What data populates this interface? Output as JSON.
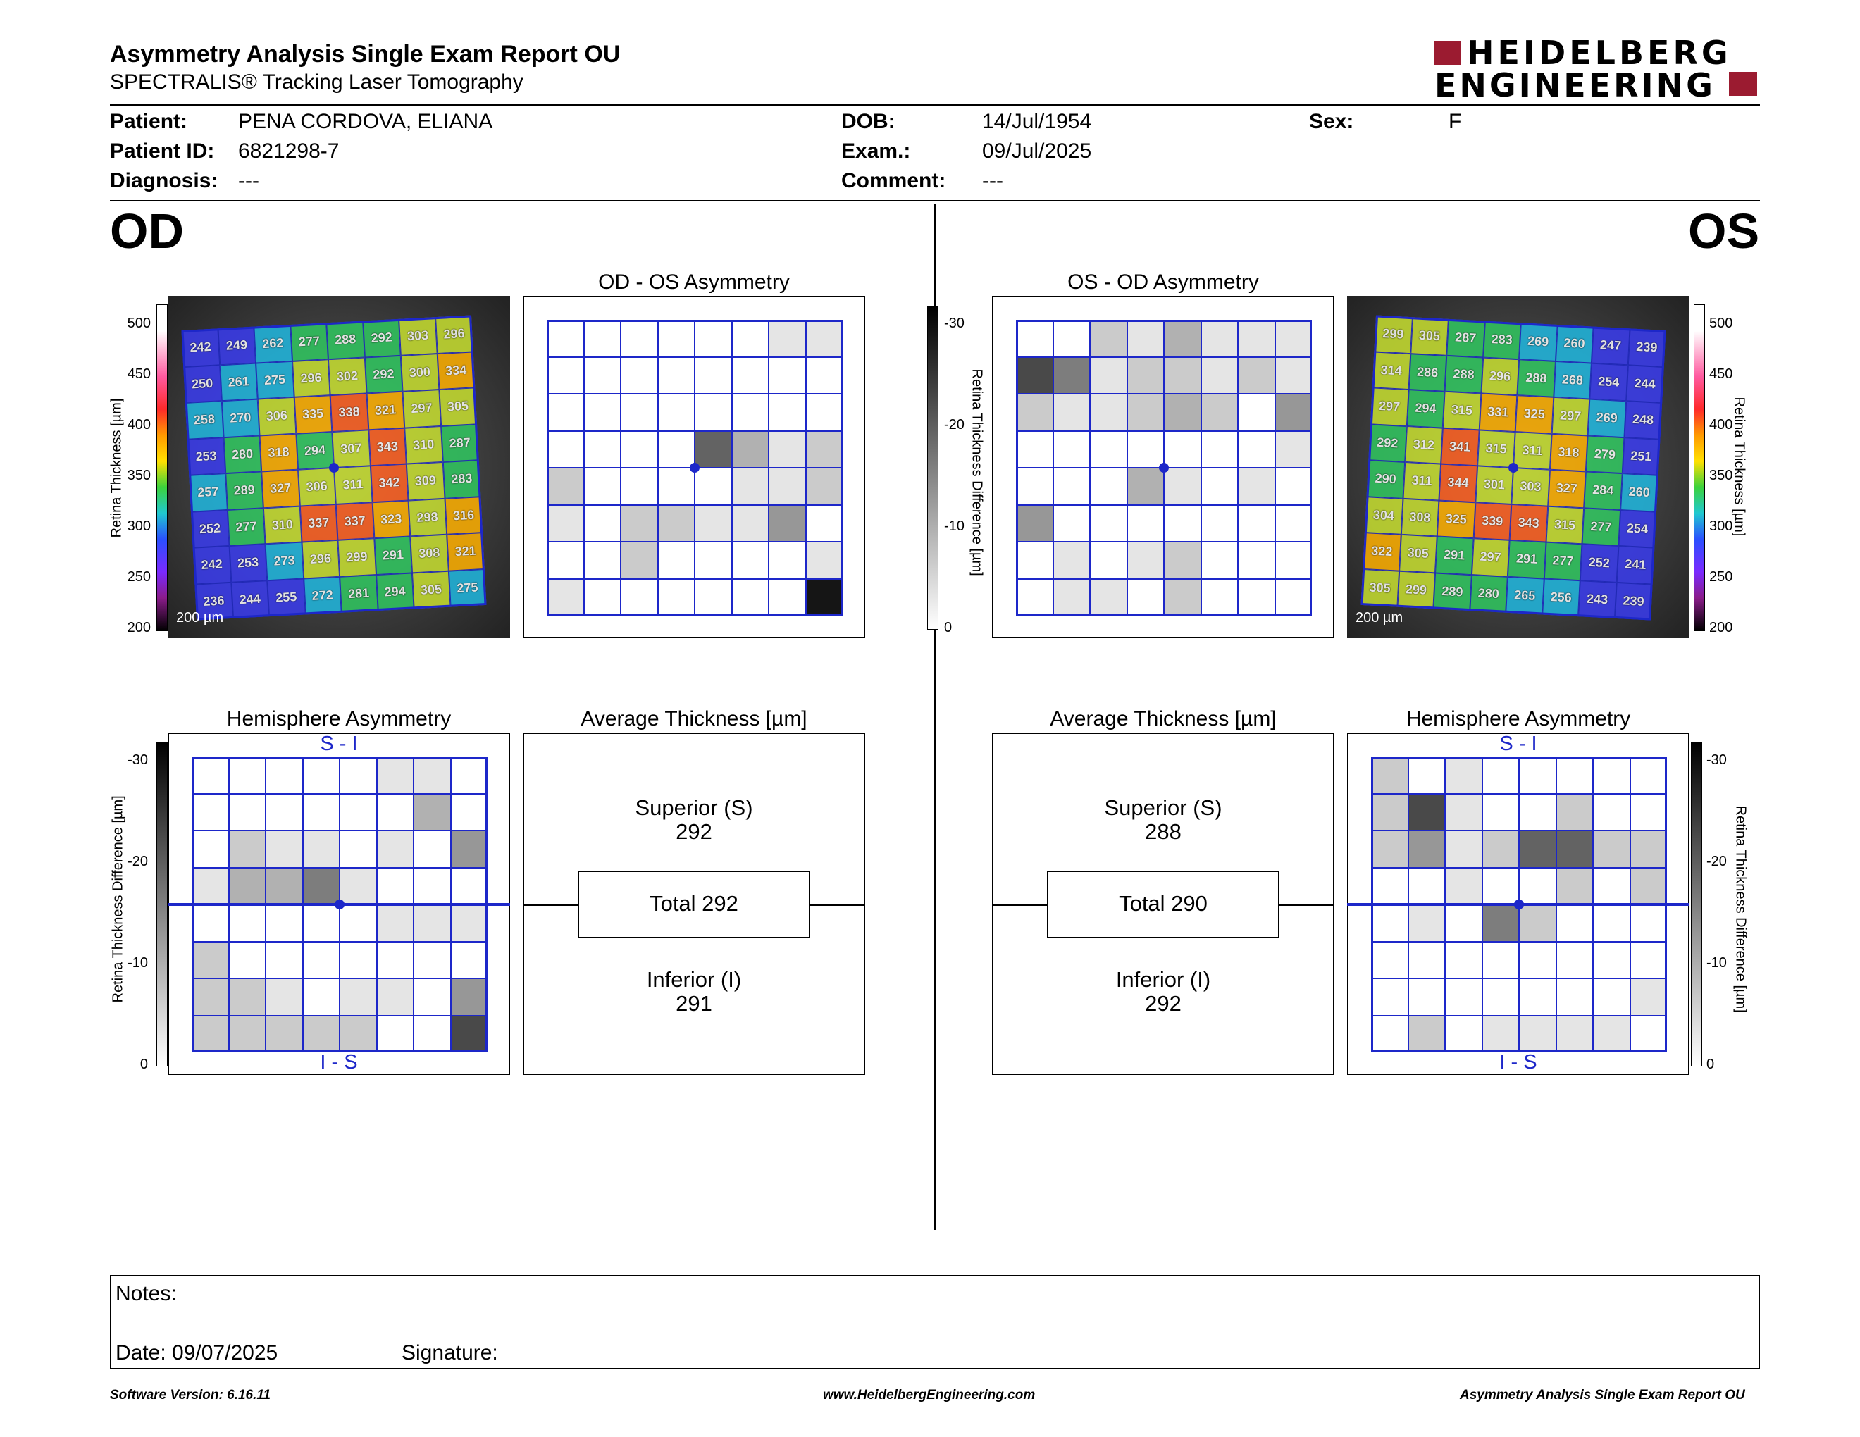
{
  "header": {
    "title": "Asymmetry Analysis Single Exam Report OU",
    "subtitle": "SPECTRALIS® Tracking Laser Tomography",
    "logo_line1": "HEIDELBERG",
    "logo_line2": "ENGINEERING"
  },
  "patient": {
    "patient_label": "Patient:",
    "patient_value": "PENA CORDOVA, ELIANA",
    "id_label": "Patient ID:",
    "id_value": "6821298-7",
    "diagnosis_label": "Diagnosis:",
    "diagnosis_value": "---",
    "dob_label": "DOB:",
    "dob_value": "14/Jul/1954",
    "exam_label": "Exam.:",
    "exam_value": "09/Jul/2025",
    "comment_label": "Comment:",
    "comment_value": "---",
    "sex_label": "Sex:",
    "sex_value": "F"
  },
  "od": {
    "eye_label": "OD",
    "asym_title": "OD - OS Asymmetry",
    "hemi_title": "Hemisphere Asymmetry",
    "hemi_top": "S - I",
    "hemi_bottom": "I - S",
    "avg_title": "Average Thickness [µm]",
    "superior_label": "Superior (S)",
    "superior_value": "292",
    "total_label": "Total 292",
    "inferior_label": "Inferior (I)",
    "inferior_value": "291",
    "scale_label": "200 µm",
    "thickness_grid": [
      [
        242,
        249,
        262,
        277,
        288,
        292,
        303,
        296
      ],
      [
        250,
        261,
        275,
        296,
        302,
        292,
        300,
        334
      ],
      [
        258,
        270,
        306,
        335,
        338,
        321,
        297,
        305
      ],
      [
        253,
        280,
        318,
        294,
        307,
        343,
        310,
        287
      ],
      [
        257,
        289,
        327,
        306,
        311,
        342,
        309,
        283
      ],
      [
        252,
        277,
        310,
        337,
        337,
        323,
        298,
        316
      ],
      [
        242,
        253,
        273,
        296,
        299,
        291,
        308,
        321
      ],
      [
        236,
        244,
        255,
        272,
        281,
        294,
        305,
        275
      ]
    ],
    "asym_grid": [
      [
        0,
        0,
        0,
        0,
        0,
        0,
        1,
        1
      ],
      [
        0,
        0,
        0,
        0,
        0,
        0,
        0,
        0
      ],
      [
        0,
        0,
        0,
        0,
        0,
        0,
        0,
        0
      ],
      [
        0,
        0,
        0,
        0,
        6,
        3,
        1,
        2
      ],
      [
        2,
        0,
        0,
        0,
        0,
        1,
        1,
        2
      ],
      [
        1,
        0,
        2,
        2,
        1,
        1,
        4,
        0
      ],
      [
        0,
        0,
        2,
        0,
        0,
        0,
        0,
        1
      ],
      [
        1,
        0,
        0,
        0,
        0,
        0,
        0,
        9
      ]
    ],
    "hemi_grid": [
      [
        0,
        0,
        0,
        0,
        0,
        1,
        1,
        0
      ],
      [
        0,
        0,
        0,
        0,
        0,
        0,
        3,
        0
      ],
      [
        0,
        2,
        1,
        1,
        0,
        1,
        0,
        4
      ],
      [
        1,
        3,
        3,
        5,
        1,
        0,
        0,
        0
      ],
      [
        0,
        0,
        0,
        0,
        0,
        1,
        1,
        1
      ],
      [
        2,
        0,
        0,
        0,
        0,
        0,
        0,
        0
      ],
      [
        2,
        2,
        1,
        0,
        1,
        1,
        0,
        4
      ],
      [
        2,
        2,
        2,
        2,
        2,
        0,
        0,
        7
      ]
    ]
  },
  "os": {
    "eye_label": "OS",
    "asym_title": "OS - OD Asymmetry",
    "hemi_title": "Hemisphere Asymmetry",
    "hemi_top": "S - I",
    "hemi_bottom": "I - S",
    "avg_title": "Average Thickness [µm]",
    "superior_label": "Superior (S)",
    "superior_value": "288",
    "total_label": "Total 290",
    "inferior_label": "Inferior (I)",
    "inferior_value": "292",
    "scale_label": "200 µm",
    "thickness_grid": [
      [
        299,
        305,
        287,
        283,
        269,
        260,
        247,
        239
      ],
      [
        314,
        286,
        288,
        296,
        288,
        268,
        254,
        244
      ],
      [
        297,
        294,
        315,
        331,
        325,
        297,
        269,
        248
      ],
      [
        292,
        312,
        341,
        315,
        311,
        318,
        279,
        251
      ],
      [
        290,
        311,
        344,
        301,
        303,
        327,
        284,
        260
      ],
      [
        304,
        308,
        325,
        339,
        343,
        315,
        277,
        254
      ],
      [
        322,
        305,
        291,
        297,
        291,
        277,
        252,
        241
      ],
      [
        305,
        299,
        289,
        280,
        265,
        256,
        243,
        239
      ]
    ],
    "asym_grid": [
      [
        0,
        0,
        2,
        1,
        3,
        1,
        1,
        1
      ],
      [
        7,
        5,
        1,
        2,
        2,
        1,
        2,
        1
      ],
      [
        2,
        1,
        1,
        2,
        3,
        2,
        0,
        4
      ],
      [
        0,
        0,
        0,
        0,
        0,
        0,
        0,
        1
      ],
      [
        0,
        0,
        0,
        3,
        1,
        0,
        1,
        0
      ],
      [
        4,
        0,
        0,
        0,
        0,
        0,
        0,
        0
      ],
      [
        0,
        1,
        0,
        1,
        2,
        0,
        0,
        0
      ],
      [
        0,
        1,
        1,
        0,
        2,
        0,
        0,
        0
      ]
    ],
    "hemi_grid": [
      [
        2,
        0,
        1,
        0,
        0,
        0,
        0,
        0
      ],
      [
        2,
        7,
        1,
        0,
        0,
        2,
        0,
        0
      ],
      [
        2,
        4,
        1,
        2,
        6,
        6,
        2,
        2
      ],
      [
        0,
        0,
        1,
        0,
        0,
        2,
        0,
        2
      ],
      [
        0,
        1,
        0,
        5,
        2,
        0,
        0,
        0
      ],
      [
        0,
        0,
        0,
        0,
        0,
        0,
        0,
        0
      ],
      [
        0,
        0,
        0,
        0,
        0,
        0,
        0,
        1
      ],
      [
        0,
        2,
        0,
        1,
        1,
        1,
        1,
        0
      ]
    ]
  },
  "thickness_scale": {
    "label": "Retina Thickness [µm]",
    "ticks": [
      "500",
      "450",
      "400",
      "350",
      "300",
      "250",
      "200"
    ]
  },
  "difference_scale": {
    "label": "Retina Thickness Difference [µm]",
    "ticks": [
      "-30",
      "-20",
      "-10",
      "0"
    ]
  },
  "notes": {
    "notes_label": "Notes:",
    "date_label": "Date: 09/07/2025",
    "signature_label": "Signature:"
  },
  "footer": {
    "software": "Software Version: 6.16.11",
    "website": "www.HeidelbergEngineering.com",
    "report": "Asymmetry Analysis Single Exam Report OU"
  },
  "colors": {
    "grid_blue": "#1d27c9",
    "logo_red": "#9b1b30"
  }
}
